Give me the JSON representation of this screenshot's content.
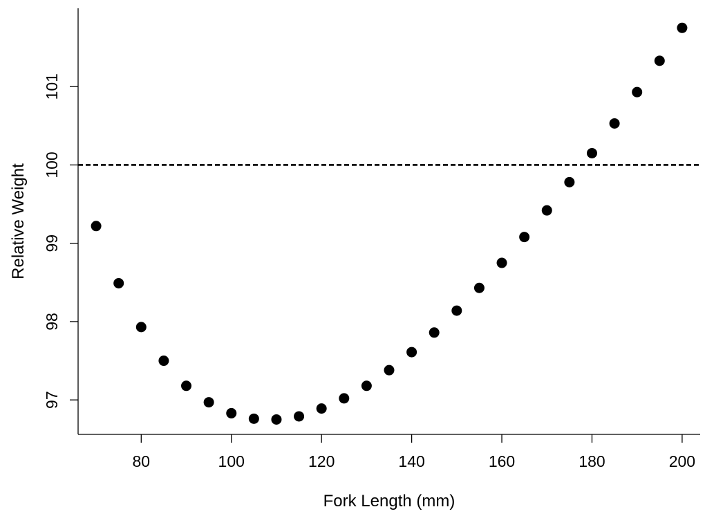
{
  "chart_data": {
    "type": "scatter",
    "xlabel": "Fork Length (mm)",
    "ylabel": "Relative Weight",
    "xlim": [
      66,
      204
    ],
    "ylim": [
      96.56,
      102.0
    ],
    "xticks": [
      80,
      100,
      120,
      140,
      160,
      180,
      200
    ],
    "yticks": [
      97,
      98,
      99,
      100,
      101
    ],
    "reference_line": {
      "y": 100,
      "style": "dashed"
    },
    "grid": false,
    "legend": "none",
    "marker_color": "#000000",
    "x": [
      70,
      75,
      80,
      85,
      90,
      95,
      100,
      105,
      110,
      115,
      120,
      125,
      130,
      135,
      140,
      145,
      150,
      155,
      160,
      165,
      170,
      175,
      180,
      185,
      190,
      195,
      200
    ],
    "y": [
      99.22,
      98.49,
      97.93,
      97.5,
      97.18,
      96.97,
      96.83,
      96.76,
      96.75,
      96.79,
      96.89,
      97.02,
      97.18,
      97.38,
      97.61,
      97.86,
      98.14,
      98.43,
      98.75,
      99.08,
      99.42,
      99.78,
      100.15,
      100.53,
      100.93,
      101.33,
      101.75
    ]
  }
}
